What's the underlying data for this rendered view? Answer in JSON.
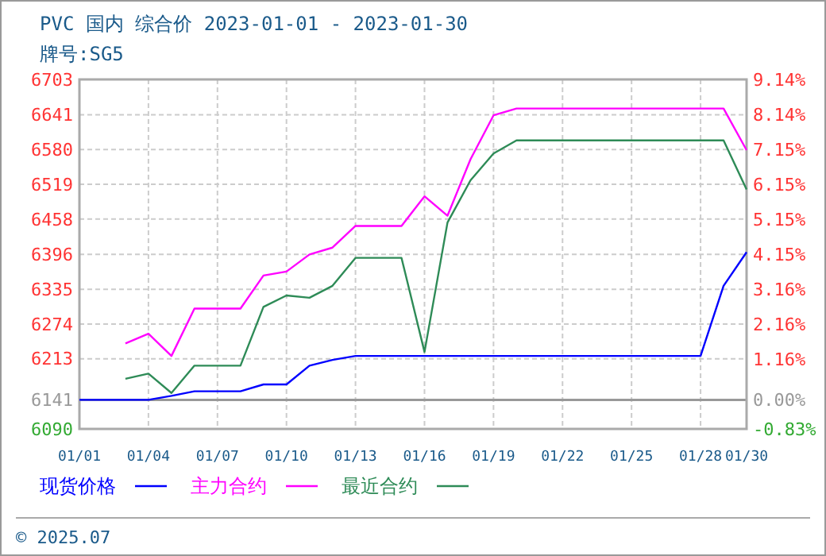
{
  "chart_data": {
    "type": "line",
    "title": "PVC 国内 综合价 2023-01-01 - 2023-01-30",
    "subtitle": "牌号:SG5",
    "x": [
      "2023-01-01",
      "2023-01-02",
      "2023-01-03",
      "2023-01-04",
      "2023-01-05",
      "2023-01-06",
      "2023-01-07",
      "2023-01-08",
      "2023-01-09",
      "2023-01-10",
      "2023-01-11",
      "2023-01-12",
      "2023-01-13",
      "2023-01-14",
      "2023-01-15",
      "2023-01-16",
      "2023-01-17",
      "2023-01-18",
      "2023-01-19",
      "2023-01-20",
      "2023-01-21",
      "2023-01-22",
      "2023-01-23",
      "2023-01-24",
      "2023-01-25",
      "2023-01-26",
      "2023-01-27",
      "2023-01-28",
      "2023-01-29",
      "2023-01-30"
    ],
    "series": [
      {
        "name": "现货价格",
        "color": "#0000ff",
        "values": [
          6141,
          6141,
          6141,
          6141,
          6148,
          6156,
          6156,
          6156,
          6168,
          6168,
          6201,
          6211,
          6218,
          6218,
          6218,
          6218,
          6218,
          6218,
          6218,
          6218,
          6218,
          6218,
          6218,
          6218,
          6218,
          6218,
          6218,
          6218,
          6341,
          6400
        ]
      },
      {
        "name": "主力合约",
        "color": "#ff00ff",
        "values": [
          null,
          null,
          6240,
          6257,
          6218,
          6301,
          6301,
          6301,
          6359,
          6366,
          6396,
          6408,
          6446,
          6446,
          6446,
          6498,
          6464,
          6563,
          6640,
          6652,
          6652,
          6652,
          6652,
          6652,
          6652,
          6652,
          6652,
          6652,
          6652,
          6579
        ]
      },
      {
        "name": "最近合约",
        "color": "#2e8b57",
        "values": [
          null,
          null,
          6178,
          6187,
          6153,
          6201,
          6201,
          6201,
          6304,
          6324,
          6320,
          6341,
          6390,
          6390,
          6390,
          6225,
          6452,
          6526,
          6573,
          6596,
          6596,
          6596,
          6596,
          6596,
          6596,
          6596,
          6596,
          6596,
          6596,
          6510
        ]
      }
    ],
    "xlim": [
      "2023-01-01",
      "2023-01-30"
    ],
    "xticks": [
      {
        "value": "2023-01-01",
        "label": "01/01"
      },
      {
        "value": "2023-01-04",
        "label": "01/04"
      },
      {
        "value": "2023-01-07",
        "label": "01/07"
      },
      {
        "value": "2023-01-10",
        "label": "01/10"
      },
      {
        "value": "2023-01-13",
        "label": "01/13"
      },
      {
        "value": "2023-01-16",
        "label": "01/16"
      },
      {
        "value": "2023-01-19",
        "label": "01/19"
      },
      {
        "value": "2023-01-22",
        "label": "01/22"
      },
      {
        "value": "2023-01-25",
        "label": "01/25"
      },
      {
        "value": "2023-01-28",
        "label": "01/28"
      },
      {
        "value": "2023-01-30",
        "label": "01/30"
      }
    ],
    "ylim": [
      6090,
      6703
    ],
    "yticks": [
      6090,
      6141,
      6213,
      6274,
      6335,
      6396,
      6458,
      6519,
      6580,
      6641,
      6703
    ],
    "y2lim": [
      -0.83,
      9.14
    ],
    "y2ticks": [
      {
        "value": -0.83,
        "label": "-0.83%"
      },
      {
        "value": 0,
        "label": "0.00%"
      },
      {
        "value": 1.16,
        "label": "1.16%"
      },
      {
        "value": 2.16,
        "label": "2.16%"
      },
      {
        "value": 3.16,
        "label": "3.16%"
      },
      {
        "value": 4.15,
        "label": "4.15%"
      },
      {
        "value": 5.15,
        "label": "5.15%"
      },
      {
        "value": 6.15,
        "label": "6.15%"
      },
      {
        "value": 7.15,
        "label": "7.15%"
      },
      {
        "value": 8.14,
        "label": "8.14%"
      },
      {
        "value": 9.14,
        "label": "9.14%"
      }
    ],
    "ref_lines": [
      {
        "axis": "y",
        "value": 6141,
        "color": "#999999"
      }
    ],
    "grid": true,
    "legend": "bottom",
    "marker": "none",
    "line_style": "solid",
    "annotations": [
      "© 2025.07"
    ]
  }
}
